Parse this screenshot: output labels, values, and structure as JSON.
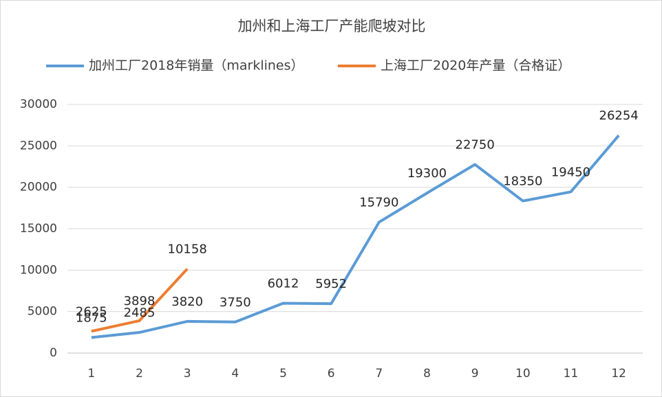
{
  "chart_data": {
    "type": "line",
    "title": "加州和上海工厂产能爬坡对比",
    "categories": [
      "1",
      "2",
      "3",
      "4",
      "5",
      "6",
      "7",
      "8",
      "9",
      "10",
      "11",
      "12"
    ],
    "series": [
      {
        "name": "加州工厂2018年销量（marklines）",
        "color": "#5b9bd5",
        "values": [
          1875,
          2485,
          3820,
          3750,
          6012,
          5952,
          15790,
          19300,
          22750,
          18350,
          19450,
          26254
        ]
      },
      {
        "name": "上海工厂2020年产量（合格证）",
        "color": "#ed7d31",
        "values": [
          2625,
          3898,
          10158,
          null,
          null,
          null,
          null,
          null,
          null,
          null,
          null,
          null
        ]
      }
    ],
    "ylim": [
      0,
      30000
    ],
    "yticks": [
      0,
      5000,
      10000,
      15000,
      20000,
      25000,
      30000
    ],
    "grid": true,
    "legend": "top"
  }
}
